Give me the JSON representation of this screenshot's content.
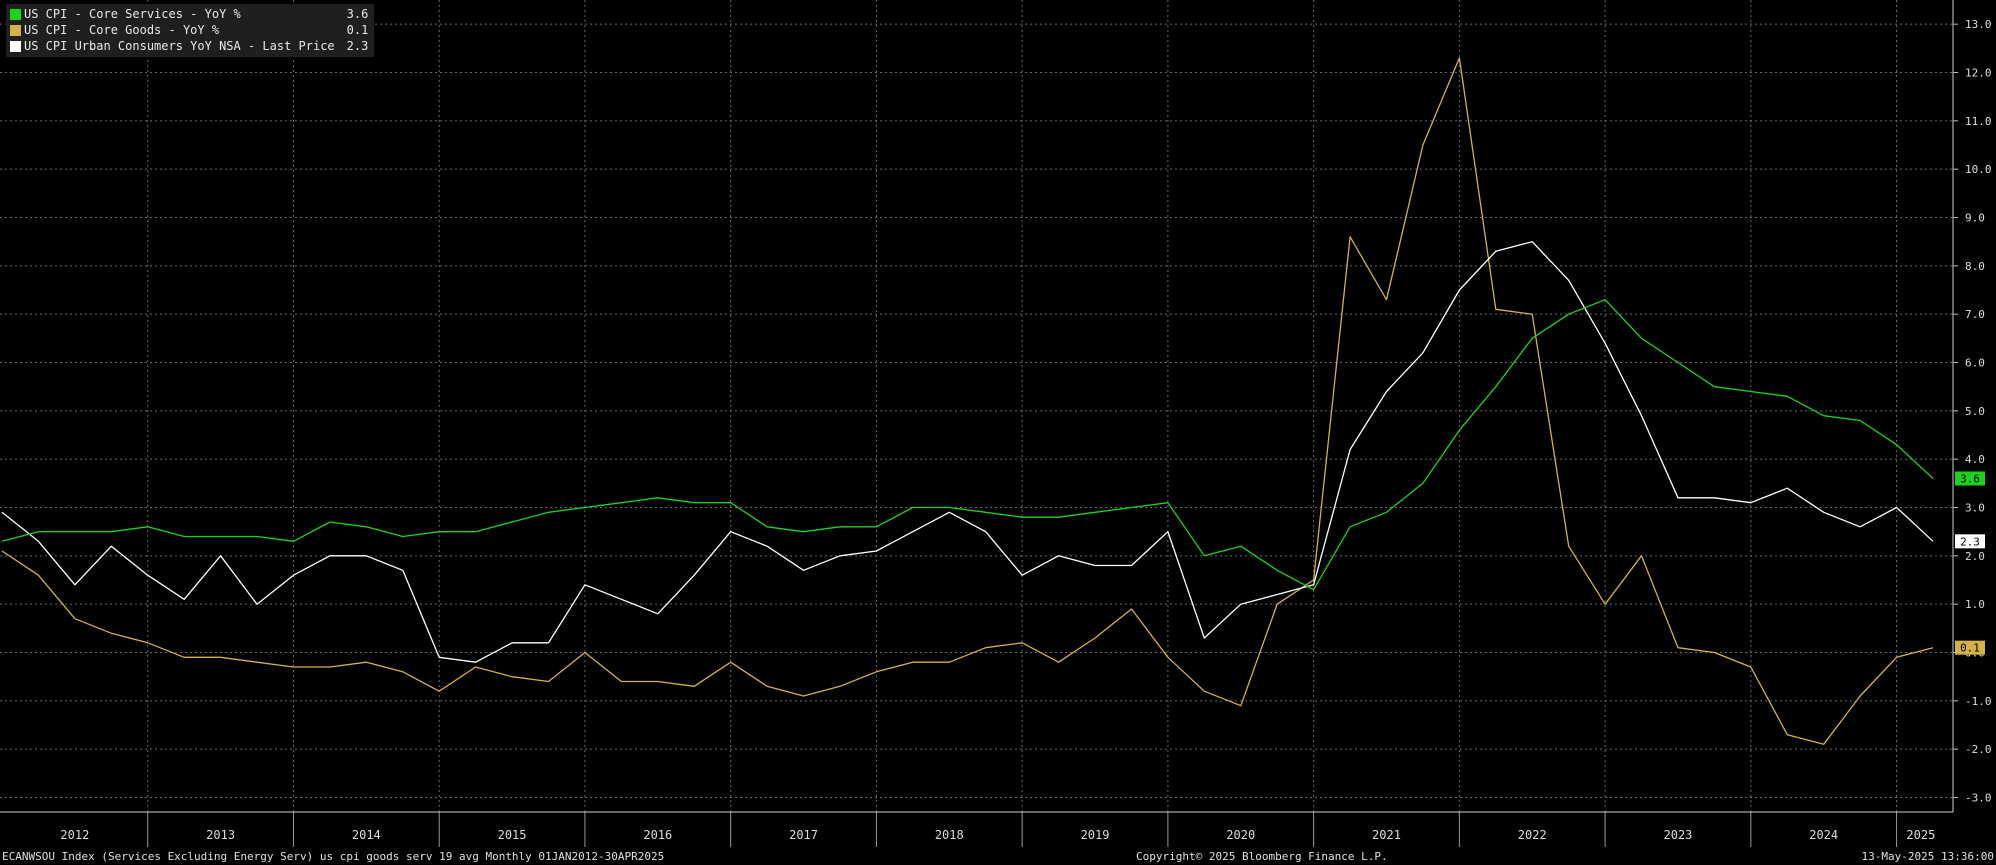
{
  "legend": [
    {
      "label": "US CPI - Core Services - YoY %",
      "value": "3.6",
      "color": "#1fd11f"
    },
    {
      "label": "US CPI - Core Goods - YoY %",
      "value": "0.1",
      "color": "#d4b14a"
    },
    {
      "label": "US CPI Urban Consumers YoY NSA - Last Price",
      "value": "2.3",
      "color": "#ffffff"
    }
  ],
  "footer": {
    "left": "ECANWSOU Index (Services Excluding Energy Serv) us cpi goods serv 19 avg  Monthly 01JAN2012-30APR2025",
    "center": "Copyright© 2025 Bloomberg Finance L.P.",
    "right": "13-May-2025 13:36:00"
  },
  "chart_data": {
    "type": "line",
    "x_range": [
      "2012-01",
      "2025-04"
    ],
    "x_tick_labels": [
      "2012",
      "2013",
      "2014",
      "2015",
      "2016",
      "2017",
      "2018",
      "2019",
      "2020",
      "2021",
      "2022",
      "2023",
      "2024",
      "2025"
    ],
    "y_tick_labels": [
      "13.0",
      "12.0",
      "11.0",
      "10.0",
      "9.0",
      "8.0",
      "7.0",
      "6.0",
      "5.0",
      "4.0",
      "3.0",
      "2.0",
      "1.0",
      "0.0",
      "-1.0",
      "-2.0",
      "-3.0"
    ],
    "ylim": [
      -3.3,
      13.5
    ],
    "grid": true,
    "legend_position": "top-left",
    "series": [
      {
        "name": "US CPI - Core Services - YoY %",
        "color": "#1fd11f",
        "last_label": "3.6",
        "points": [
          [
            "2012-01",
            2.3
          ],
          [
            "2012-04",
            2.5
          ],
          [
            "2012-07",
            2.5
          ],
          [
            "2012-10",
            2.5
          ],
          [
            "2013-01",
            2.6
          ],
          [
            "2013-04",
            2.4
          ],
          [
            "2013-07",
            2.4
          ],
          [
            "2013-10",
            2.4
          ],
          [
            "2014-01",
            2.3
          ],
          [
            "2014-04",
            2.7
          ],
          [
            "2014-07",
            2.6
          ],
          [
            "2014-10",
            2.4
          ],
          [
            "2015-01",
            2.5
          ],
          [
            "2015-04",
            2.5
          ],
          [
            "2015-07",
            2.7
          ],
          [
            "2015-10",
            2.9
          ],
          [
            "2016-01",
            3.0
          ],
          [
            "2016-04",
            3.1
          ],
          [
            "2016-07",
            3.2
          ],
          [
            "2016-10",
            3.1
          ],
          [
            "2017-01",
            3.1
          ],
          [
            "2017-04",
            2.6
          ],
          [
            "2017-07",
            2.5
          ],
          [
            "2017-10",
            2.6
          ],
          [
            "2018-01",
            2.6
          ],
          [
            "2018-04",
            3.0
          ],
          [
            "2018-07",
            3.0
          ],
          [
            "2018-10",
            2.9
          ],
          [
            "2019-01",
            2.8
          ],
          [
            "2019-04",
            2.8
          ],
          [
            "2019-07",
            2.9
          ],
          [
            "2019-10",
            3.0
          ],
          [
            "2020-01",
            3.1
          ],
          [
            "2020-04",
            2.0
          ],
          [
            "2020-07",
            2.2
          ],
          [
            "2020-10",
            1.7
          ],
          [
            "2021-01",
            1.3
          ],
          [
            "2021-04",
            2.6
          ],
          [
            "2021-07",
            2.9
          ],
          [
            "2021-10",
            3.5
          ],
          [
            "2022-01",
            4.6
          ],
          [
            "2022-04",
            5.5
          ],
          [
            "2022-07",
            6.5
          ],
          [
            "2022-10",
            7.0
          ],
          [
            "2023-01",
            7.3
          ],
          [
            "2023-04",
            6.5
          ],
          [
            "2023-07",
            6.0
          ],
          [
            "2023-10",
            5.5
          ],
          [
            "2024-01",
            5.4
          ],
          [
            "2024-04",
            5.3
          ],
          [
            "2024-07",
            4.9
          ],
          [
            "2024-10",
            4.8
          ],
          [
            "2025-01",
            4.3
          ],
          [
            "2025-04",
            3.6
          ]
        ]
      },
      {
        "name": "US CPI - Core Goods - YoY %",
        "color": "#d4b14a",
        "last_label": "0.1",
        "points": [
          [
            "2012-01",
            2.1
          ],
          [
            "2012-04",
            1.6
          ],
          [
            "2012-07",
            0.7
          ],
          [
            "2012-10",
            0.4
          ],
          [
            "2013-01",
            0.2
          ],
          [
            "2013-04",
            -0.1
          ],
          [
            "2013-07",
            -0.1
          ],
          [
            "2013-10",
            -0.2
          ],
          [
            "2014-01",
            -0.3
          ],
          [
            "2014-04",
            -0.3
          ],
          [
            "2014-07",
            -0.2
          ],
          [
            "2014-10",
            -0.4
          ],
          [
            "2015-01",
            -0.8
          ],
          [
            "2015-04",
            -0.3
          ],
          [
            "2015-07",
            -0.5
          ],
          [
            "2015-10",
            -0.6
          ],
          [
            "2016-01",
            0.0
          ],
          [
            "2016-04",
            -0.6
          ],
          [
            "2016-07",
            -0.6
          ],
          [
            "2016-10",
            -0.7
          ],
          [
            "2017-01",
            -0.2
          ],
          [
            "2017-04",
            -0.7
          ],
          [
            "2017-07",
            -0.9
          ],
          [
            "2017-10",
            -0.7
          ],
          [
            "2018-01",
            -0.4
          ],
          [
            "2018-04",
            -0.2
          ],
          [
            "2018-07",
            -0.2
          ],
          [
            "2018-10",
            0.1
          ],
          [
            "2019-01",
            0.2
          ],
          [
            "2019-04",
            -0.2
          ],
          [
            "2019-07",
            0.3
          ],
          [
            "2019-10",
            0.9
          ],
          [
            "2020-01",
            -0.1
          ],
          [
            "2020-04",
            -0.8
          ],
          [
            "2020-07",
            -1.1
          ],
          [
            "2020-10",
            1.0
          ],
          [
            "2021-01",
            1.5
          ],
          [
            "2021-04",
            8.6
          ],
          [
            "2021-07",
            7.3
          ],
          [
            "2021-10",
            10.5
          ],
          [
            "2022-01",
            12.3
          ],
          [
            "2022-04",
            7.1
          ],
          [
            "2022-07",
            7.0
          ],
          [
            "2022-10",
            2.2
          ],
          [
            "2023-01",
            1.0
          ],
          [
            "2023-04",
            2.0
          ],
          [
            "2023-07",
            0.1
          ],
          [
            "2023-10",
            0.0
          ],
          [
            "2024-01",
            -0.3
          ],
          [
            "2024-04",
            -1.7
          ],
          [
            "2024-07",
            -1.9
          ],
          [
            "2024-10",
            -0.9
          ],
          [
            "2025-01",
            -0.1
          ],
          [
            "2025-04",
            0.1
          ]
        ]
      },
      {
        "name": "US CPI Urban Consumers YoY NSA - Last Price",
        "color": "#ffffff",
        "last_label": "2.3",
        "points": [
          [
            "2012-01",
            2.9
          ],
          [
            "2012-04",
            2.3
          ],
          [
            "2012-07",
            1.4
          ],
          [
            "2012-10",
            2.2
          ],
          [
            "2013-01",
            1.6
          ],
          [
            "2013-04",
            1.1
          ],
          [
            "2013-07",
            2.0
          ],
          [
            "2013-10",
            1.0
          ],
          [
            "2014-01",
            1.6
          ],
          [
            "2014-04",
            2.0
          ],
          [
            "2014-07",
            2.0
          ],
          [
            "2014-10",
            1.7
          ],
          [
            "2015-01",
            -0.1
          ],
          [
            "2015-04",
            -0.2
          ],
          [
            "2015-07",
            0.2
          ],
          [
            "2015-10",
            0.2
          ],
          [
            "2016-01",
            1.4
          ],
          [
            "2016-04",
            1.1
          ],
          [
            "2016-07",
            0.8
          ],
          [
            "2016-10",
            1.6
          ],
          [
            "2017-01",
            2.5
          ],
          [
            "2017-04",
            2.2
          ],
          [
            "2017-07",
            1.7
          ],
          [
            "2017-10",
            2.0
          ],
          [
            "2018-01",
            2.1
          ],
          [
            "2018-04",
            2.5
          ],
          [
            "2018-07",
            2.9
          ],
          [
            "2018-10",
            2.5
          ],
          [
            "2019-01",
            1.6
          ],
          [
            "2019-04",
            2.0
          ],
          [
            "2019-07",
            1.8
          ],
          [
            "2019-10",
            1.8
          ],
          [
            "2020-01",
            2.5
          ],
          [
            "2020-04",
            0.3
          ],
          [
            "2020-07",
            1.0
          ],
          [
            "2020-10",
            1.2
          ],
          [
            "2021-01",
            1.4
          ],
          [
            "2021-04",
            4.2
          ],
          [
            "2021-07",
            5.4
          ],
          [
            "2021-10",
            6.2
          ],
          [
            "2022-01",
            7.5
          ],
          [
            "2022-04",
            8.3
          ],
          [
            "2022-07",
            8.5
          ],
          [
            "2022-10",
            7.7
          ],
          [
            "2023-01",
            6.4
          ],
          [
            "2023-04",
            4.9
          ],
          [
            "2023-07",
            3.2
          ],
          [
            "2023-10",
            3.2
          ],
          [
            "2024-01",
            3.1
          ],
          [
            "2024-04",
            3.4
          ],
          [
            "2024-07",
            2.9
          ],
          [
            "2024-10",
            2.6
          ],
          [
            "2025-01",
            3.0
          ],
          [
            "2025-04",
            2.3
          ]
        ]
      }
    ]
  }
}
